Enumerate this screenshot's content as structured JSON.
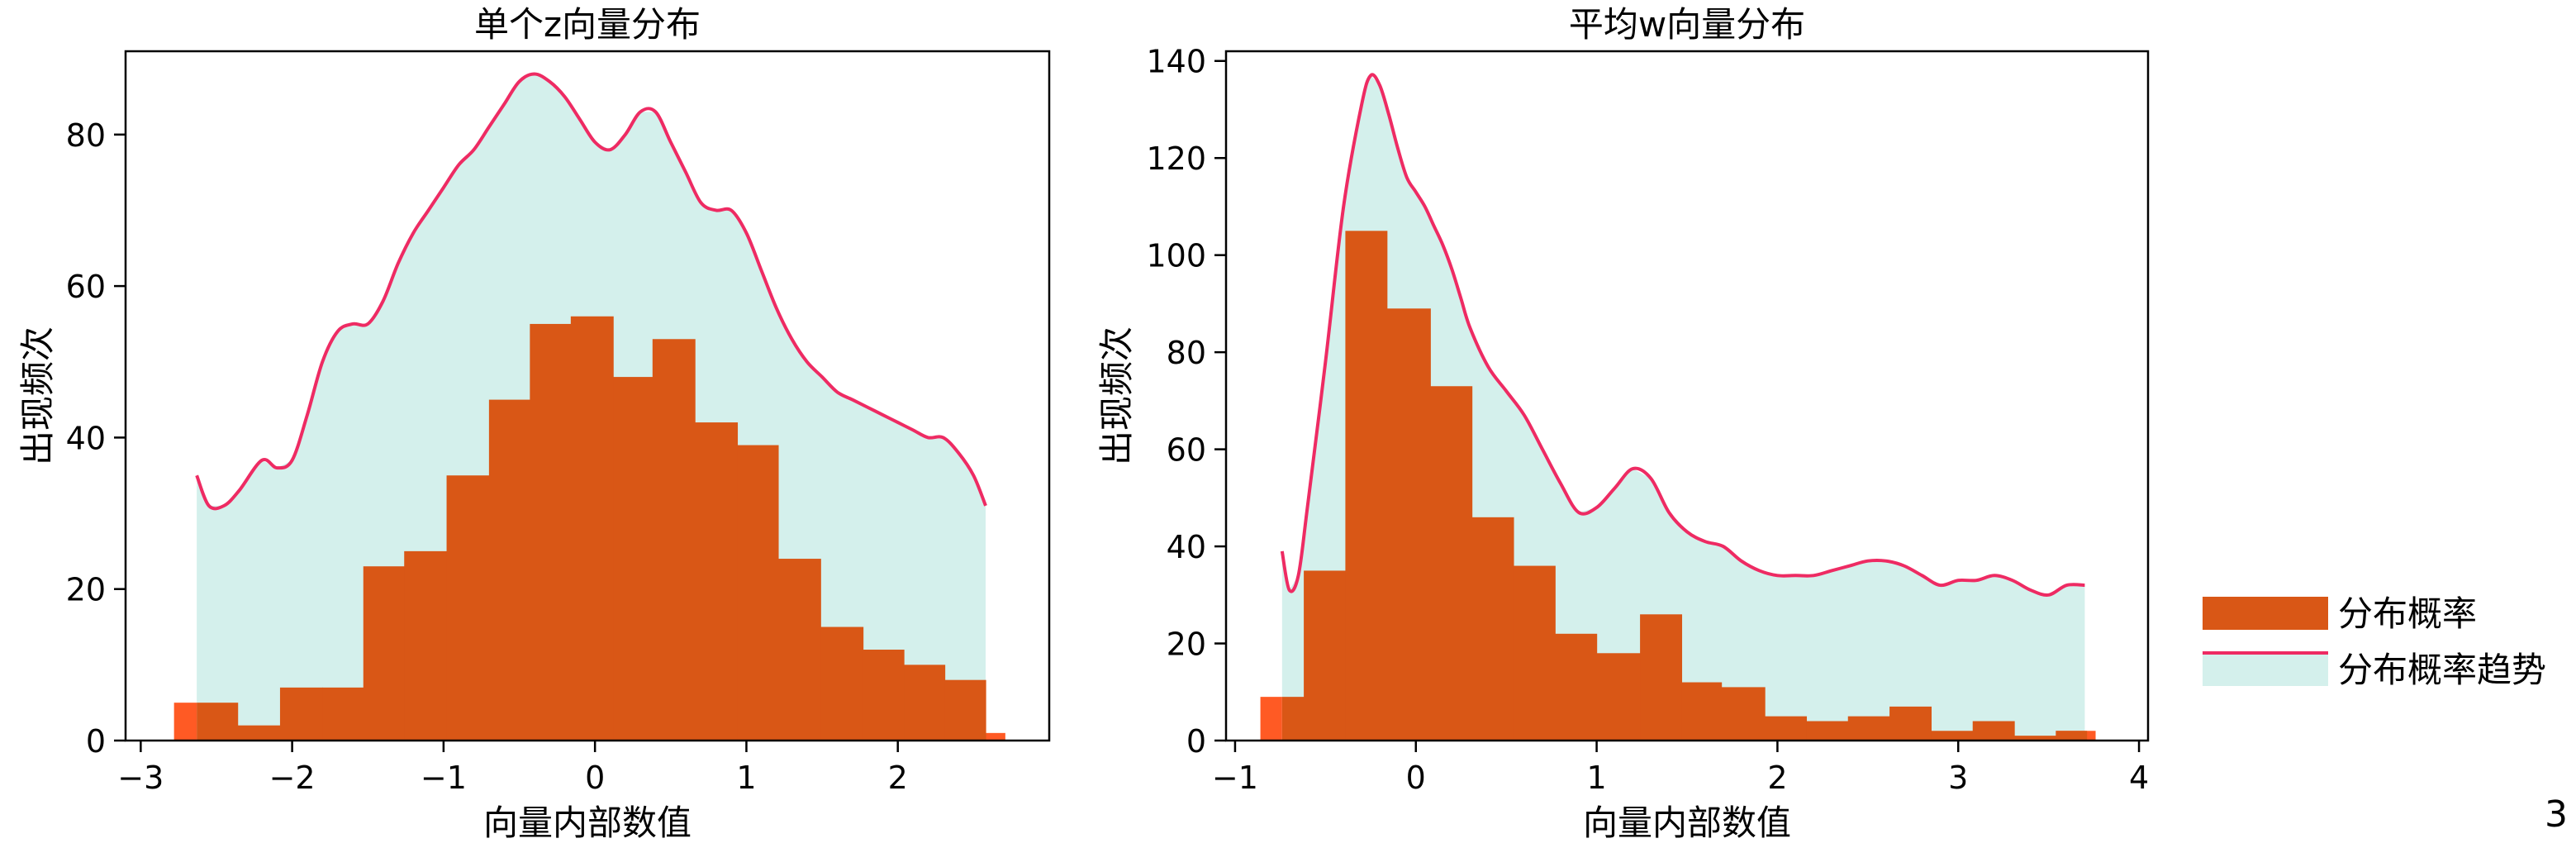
{
  "colors": {
    "bar": "#d95716",
    "bar_edge": "#ff5a24",
    "trend_line": "#ee2b63",
    "trend_fill": "#d4f0ec",
    "axis": "#000000"
  },
  "legend": {
    "bar_label": "分布概率",
    "trend_label": "分布概率趋势"
  },
  "page_number": "3",
  "chart_data": [
    {
      "type": "bar",
      "title": "单个z向量分布",
      "xlabel": "向量内部数值",
      "ylabel": "出现频次",
      "xlim": [
        -3.1,
        3.0
      ],
      "ylim": [
        0,
        91
      ],
      "xticks": [
        -3,
        -2,
        -1,
        0,
        1,
        2
      ],
      "xtick_labels": [
        "−3",
        "−2",
        "−1",
        "0",
        "1",
        "2"
      ],
      "yticks": [
        0,
        20,
        40,
        60,
        80
      ],
      "ytick_labels": [
        "0",
        "20",
        "40",
        "60",
        "80"
      ],
      "grid": false,
      "bars": {
        "edges": [
          -2.63,
          -2.36,
          -2.08,
          -1.8,
          -1.53,
          -1.26,
          -0.98,
          -0.7,
          -0.43,
          -0.16,
          0.12,
          0.38,
          0.66,
          0.94,
          1.21,
          1.49,
          1.77,
          2.04,
          2.31,
          2.58
        ],
        "values": [
          5,
          2,
          7,
          7,
          23,
          25,
          35,
          45,
          55,
          56,
          48,
          53,
          42,
          39,
          24,
          15,
          12,
          10,
          8
        ]
      },
      "edge_bars": [
        {
          "x0": -2.78,
          "x1": -2.63,
          "value": 5
        },
        {
          "x0": 2.58,
          "x1": 2.71,
          "value": 1
        }
      ],
      "trend": {
        "x": [
          -2.63,
          -2.55,
          -2.45,
          -2.35,
          -2.2,
          -2.1,
          -2.0,
          -1.9,
          -1.8,
          -1.7,
          -1.6,
          -1.5,
          -1.4,
          -1.3,
          -1.2,
          -1.1,
          -1.0,
          -0.9,
          -0.8,
          -0.7,
          -0.6,
          -0.5,
          -0.4,
          -0.3,
          -0.2,
          -0.1,
          0.0,
          0.1,
          0.2,
          0.3,
          0.4,
          0.5,
          0.6,
          0.7,
          0.8,
          0.9,
          1.0,
          1.1,
          1.2,
          1.3,
          1.4,
          1.5,
          1.6,
          1.7,
          1.8,
          1.9,
          2.0,
          2.1,
          2.2,
          2.3,
          2.4,
          2.5,
          2.58
        ],
        "y": [
          35,
          31,
          31,
          33,
          37,
          36,
          37,
          43,
          50,
          54,
          55,
          55,
          58,
          63,
          67,
          70,
          73,
          76,
          78,
          81,
          84,
          87,
          88,
          87,
          85,
          82,
          79,
          78,
          80,
          83,
          83,
          79,
          75,
          71,
          70,
          70,
          67,
          62,
          57,
          53,
          50,
          48,
          46,
          45,
          44,
          43,
          42,
          41,
          40,
          40,
          38,
          35,
          31
        ]
      }
    },
    {
      "type": "bar",
      "title": "平均w向量分布",
      "xlabel": "向量内部数值",
      "ylabel": "出现频次",
      "xlim": [
        -1.05,
        4.05
      ],
      "ylim": [
        0,
        142
      ],
      "xticks": [
        -1,
        0,
        1,
        2,
        3,
        4
      ],
      "xtick_labels": [
        "−1",
        "0",
        "1",
        "2",
        "3",
        "4"
      ],
      "yticks": [
        0,
        20,
        40,
        60,
        80,
        100,
        120,
        140
      ],
      "ytick_labels": [
        "0",
        "20",
        "40",
        "60",
        "80",
        "100",
        "120",
        "140"
      ],
      "grid": false,
      "bars": {
        "edges": [
          -0.74,
          -0.62,
          -0.39,
          -0.16,
          0.08,
          0.31,
          0.54,
          0.77,
          1.0,
          1.24,
          1.47,
          1.69,
          1.93,
          2.16,
          2.39,
          2.62,
          2.85,
          3.08,
          3.31,
          3.54,
          3.71
        ],
        "values": [
          9,
          35,
          105,
          89,
          73,
          46,
          36,
          22,
          18,
          26,
          12,
          11,
          5,
          4,
          5,
          7,
          2,
          4,
          1,
          2
        ]
      },
      "edge_bars": [
        {
          "x0": -0.86,
          "x1": -0.74,
          "value": 9
        },
        {
          "x0": 3.54,
          "x1": 3.76,
          "value": 2
        }
      ],
      "trend": {
        "x": [
          -0.74,
          -0.7,
          -0.65,
          -0.6,
          -0.5,
          -0.4,
          -0.3,
          -0.25,
          -0.2,
          -0.15,
          -0.1,
          -0.05,
          0.0,
          0.05,
          0.1,
          0.15,
          0.2,
          0.25,
          0.3,
          0.4,
          0.5,
          0.6,
          0.7,
          0.8,
          0.9,
          1.0,
          1.1,
          1.2,
          1.3,
          1.4,
          1.5,
          1.6,
          1.7,
          1.8,
          1.9,
          2.0,
          2.1,
          2.2,
          2.3,
          2.4,
          2.5,
          2.6,
          2.7,
          2.8,
          2.9,
          3.0,
          3.1,
          3.2,
          3.3,
          3.4,
          3.5,
          3.6,
          3.7
        ],
        "y": [
          39,
          31,
          34,
          48,
          78,
          110,
          131,
          137,
          135,
          129,
          122,
          116,
          113,
          110,
          106,
          102,
          97,
          91,
          85,
          77,
          72,
          67,
          60,
          53,
          47,
          48,
          52,
          56,
          54,
          47,
          43,
          41,
          40,
          37,
          35,
          34,
          34,
          34,
          35,
          36,
          37,
          37,
          36,
          34,
          32,
          33,
          33,
          34,
          33,
          31,
          30,
          32,
          32
        ]
      }
    }
  ]
}
